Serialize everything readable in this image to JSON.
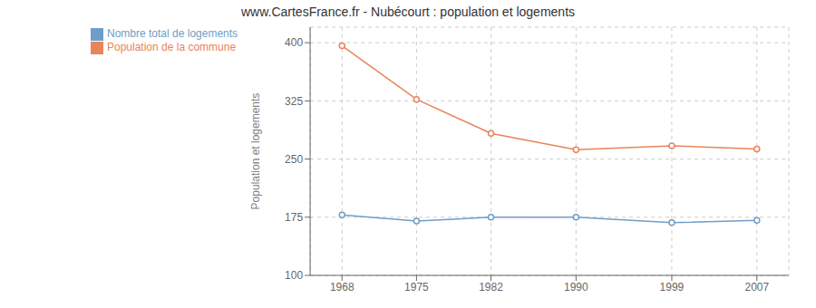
{
  "chart_data": {
    "type": "line",
    "title": "www.CartesFrance.fr - Nubécourt : population et logements",
    "ylabel": "Population et logements",
    "x": [
      1968,
      1975,
      1982,
      1990,
      1999,
      2007
    ],
    "series": [
      {
        "name": "Nombre total de logements",
        "color": "#6e9ec8",
        "values": [
          178,
          170,
          175,
          175,
          168,
          171
        ],
        "marker": "circle",
        "line_style": "solid"
      },
      {
        "name": "Population de la commune",
        "color": "#e8845a",
        "values": [
          396,
          327,
          283,
          262,
          267,
          263
        ],
        "marker": "circle",
        "line_style": "solid"
      }
    ],
    "xlim": [
      1965,
      2010
    ],
    "xticks": [
      1968,
      1975,
      1982,
      1990,
      1999,
      2007
    ],
    "ylim": [
      100,
      420
    ],
    "yticks": [
      100,
      175,
      250,
      325,
      400
    ],
    "grid": true,
    "legend": "upper left"
  }
}
